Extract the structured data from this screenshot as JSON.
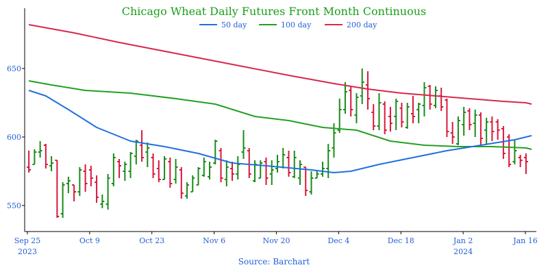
{
  "chart_data": {
    "type": "ohlc-bar",
    "title": "Chicago Wheat Daily Futures Front Month Continuous",
    "source": "Source: Barchart",
    "ylim": [
      530,
      690
    ],
    "yticks": [
      550,
      600,
      650
    ],
    "x_ticks": [
      {
        "day": 0,
        "label": "Sep 25",
        "sub": "2023"
      },
      {
        "day": 14,
        "label": "Oct 9",
        "sub": ""
      },
      {
        "day": 28,
        "label": "Oct 23",
        "sub": ""
      },
      {
        "day": 42,
        "label": "Nov 6",
        "sub": ""
      },
      {
        "day": 56,
        "label": "Nov 20",
        "sub": ""
      },
      {
        "day": 70,
        "label": "Dec 4",
        "sub": ""
      },
      {
        "day": 84,
        "label": "Dec 18",
        "sub": ""
      },
      {
        "day": 98,
        "label": "Jan 2",
        "sub": "2024"
      },
      {
        "day": 112,
        "label": "Jan 16",
        "sub": ""
      }
    ],
    "x_range": [
      0,
      115
    ],
    "colors": {
      "up": "#1a8a1a",
      "down": "#d8163c",
      "ma50": "#1f6fe0",
      "ma100": "#22a022",
      "ma200": "#d8274a",
      "axis": "#000000"
    },
    "legend": [
      {
        "name": "50 day",
        "key": "ma50"
      },
      {
        "name": "100 day",
        "key": "ma100"
      },
      {
        "name": "200 day",
        "key": "ma200"
      }
    ],
    "ohlc": [
      [
        0,
        578,
        590,
        574,
        576
      ],
      [
        1,
        580,
        591,
        580,
        589
      ],
      [
        2,
        589,
        597,
        585,
        590
      ],
      [
        3,
        594,
        595,
        577,
        580
      ],
      [
        4,
        579,
        586,
        575,
        581
      ],
      [
        5,
        583,
        583,
        541,
        542
      ],
      [
        6,
        544,
        567,
        541,
        565
      ],
      [
        7,
        566,
        571,
        559,
        568
      ],
      [
        8,
        565,
        565,
        553,
        560
      ],
      [
        9,
        560,
        578,
        557,
        576
      ],
      [
        10,
        575,
        580,
        560,
        566
      ],
      [
        11,
        576,
        579,
        564,
        570
      ],
      [
        12,
        567,
        572,
        552,
        556
      ],
      [
        13,
        551,
        558,
        548,
        553
      ],
      [
        14,
        551,
        573,
        547,
        570
      ],
      [
        15,
        566,
        588,
        564,
        585
      ],
      [
        16,
        582,
        584,
        570,
        579
      ],
      [
        17,
        575,
        582,
        568,
        580
      ],
      [
        18,
        575,
        589,
        570,
        588
      ],
      [
        19,
        586,
        598,
        580,
        597
      ],
      [
        20,
        594,
        605,
        582,
        585
      ],
      [
        21,
        589,
        596,
        578,
        592
      ],
      [
        22,
        585,
        588,
        570,
        573
      ],
      [
        23,
        577,
        583,
        567,
        569
      ],
      [
        24,
        569,
        586,
        569,
        584
      ],
      [
        25,
        582,
        585,
        563,
        566
      ],
      [
        26,
        569,
        584,
        566,
        578
      ],
      [
        27,
        576,
        578,
        555,
        559
      ],
      [
        28,
        557,
        567,
        555,
        565
      ],
      [
        29,
        560,
        572,
        560,
        570
      ],
      [
        30,
        565,
        578,
        565,
        577
      ],
      [
        31,
        572,
        585,
        571,
        582
      ],
      [
        32,
        571,
        582,
        569,
        578
      ],
      [
        33,
        581,
        598,
        580,
        597
      ],
      [
        34,
        590,
        592,
        567,
        570
      ],
      [
        35,
        569,
        583,
        564,
        578
      ],
      [
        36,
        577,
        582,
        568,
        573
      ],
      [
        37,
        573,
        586,
        569,
        580
      ],
      [
        38,
        589,
        605,
        584,
        592
      ],
      [
        39,
        590,
        592,
        570,
        573
      ],
      [
        40,
        568,
        583,
        567,
        580
      ],
      [
        41,
        570,
        583,
        570,
        581
      ],
      [
        42,
        582,
        585,
        565,
        570
      ],
      [
        43,
        573,
        583,
        565,
        576
      ],
      [
        44,
        577,
        587,
        574,
        582
      ],
      [
        45,
        578,
        592,
        577,
        587
      ],
      [
        46,
        585,
        590,
        571,
        574
      ],
      [
        47,
        571,
        590,
        570,
        585
      ],
      [
        48,
        570,
        583,
        565,
        580
      ],
      [
        49,
        578,
        578,
        557,
        561
      ],
      [
        50,
        560,
        575,
        558,
        570
      ],
      [
        51,
        570,
        575,
        570,
        573
      ],
      [
        52,
        573,
        582,
        571,
        577
      ],
      [
        53,
        577,
        595,
        570,
        590
      ],
      [
        54,
        592,
        610,
        585,
        603
      ],
      [
        55,
        605,
        628,
        603,
        620
      ],
      [
        56,
        620,
        640,
        617,
        633
      ],
      [
        57,
        634,
        637,
        615,
        620
      ],
      [
        58,
        616,
        632,
        610,
        629
      ],
      [
        59,
        630,
        650,
        624,
        640
      ],
      [
        60,
        638,
        648,
        620,
        628
      ],
      [
        61,
        618,
        624,
        605,
        608
      ],
      [
        62,
        608,
        632,
        605,
        625
      ],
      [
        63,
        624,
        626,
        602,
        605
      ],
      [
        64,
        615,
        622,
        604,
        610
      ],
      [
        65,
        615,
        628,
        605,
        626
      ],
      [
        66,
        621,
        625,
        607,
        611
      ],
      [
        67,
        607,
        625,
        606,
        622
      ],
      [
        68,
        617,
        630,
        610,
        615
      ],
      [
        69,
        620,
        625,
        610,
        624
      ],
      [
        70,
        623,
        640,
        615,
        636
      ],
      [
        71,
        637,
        638,
        620,
        624
      ],
      [
        72,
        623,
        637,
        621,
        634
      ],
      [
        73,
        630,
        636,
        619,
        622
      ],
      [
        74,
        627,
        628,
        600,
        604
      ],
      [
        75,
        603,
        611,
        595,
        600
      ],
      [
        76,
        595,
        615,
        594,
        612
      ],
      [
        77,
        609,
        622,
        601,
        618
      ],
      [
        78,
        619,
        621,
        605,
        609
      ],
      [
        79,
        610,
        620,
        600,
        616
      ],
      [
        80,
        616,
        618,
        594,
        599
      ],
      [
        81,
        605,
        614,
        595,
        611
      ],
      [
        82,
        611,
        615,
        597,
        604
      ],
      [
        83,
        611,
        613,
        598,
        605
      ],
      [
        84,
        606,
        608,
        584,
        588
      ],
      [
        85,
        600,
        602,
        578,
        580
      ],
      [
        86,
        582,
        598,
        580,
        590
      ],
      [
        87,
        585,
        587,
        578,
        583
      ],
      [
        88,
        585,
        588,
        573,
        582
      ]
    ],
    "ma50": [
      [
        0,
        634
      ],
      [
        3,
        630
      ],
      [
        7,
        620
      ],
      [
        12,
        607
      ],
      [
        18,
        597
      ],
      [
        24,
        593
      ],
      [
        30,
        588
      ],
      [
        36,
        581
      ],
      [
        42,
        579
      ],
      [
        50,
        576
      ],
      [
        54,
        574
      ],
      [
        57,
        575
      ],
      [
        62,
        580
      ],
      [
        68,
        585
      ],
      [
        74,
        590
      ],
      [
        80,
        594
      ],
      [
        86,
        598
      ],
      [
        88,
        600
      ],
      [
        90,
        601
      ]
    ],
    "ma100": [
      [
        0,
        641
      ],
      [
        4,
        638
      ],
      [
        10,
        634
      ],
      [
        18,
        632
      ],
      [
        26,
        628
      ],
      [
        33,
        624
      ],
      [
        40,
        615
      ],
      [
        46,
        612
      ],
      [
        52,
        607
      ],
      [
        58,
        605
      ],
      [
        64,
        597
      ],
      [
        70,
        594
      ],
      [
        76,
        593
      ],
      [
        82,
        593
      ],
      [
        88,
        592
      ],
      [
        90,
        591
      ]
    ],
    "ma200": [
      [
        0,
        682
      ],
      [
        8,
        676
      ],
      [
        16,
        669
      ],
      [
        26,
        661
      ],
      [
        36,
        653
      ],
      [
        46,
        645
      ],
      [
        54,
        639
      ],
      [
        60,
        635
      ],
      [
        66,
        632
      ],
      [
        72,
        630
      ],
      [
        78,
        628
      ],
      [
        84,
        626
      ],
      [
        88,
        625
      ],
      [
        90,
        624
      ]
    ]
  }
}
